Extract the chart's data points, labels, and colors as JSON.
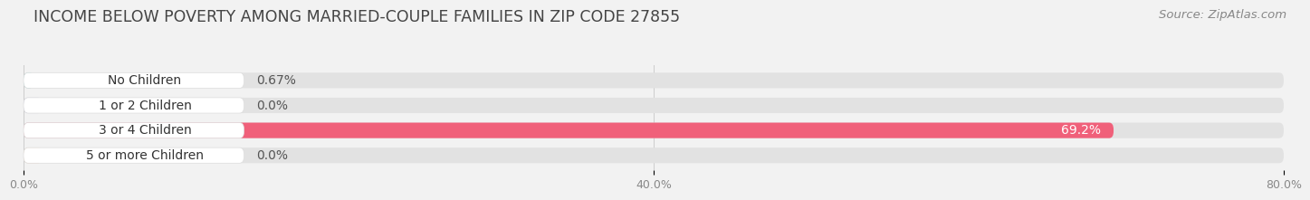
{
  "title": "INCOME BELOW POVERTY AMONG MARRIED-COUPLE FAMILIES IN ZIP CODE 27855",
  "source": "Source: ZipAtlas.com",
  "categories": [
    "No Children",
    "1 or 2 Children",
    "3 or 4 Children",
    "5 or more Children"
  ],
  "values": [
    0.67,
    0.0,
    69.2,
    0.0
  ],
  "bar_colors": [
    "#5ec8c0",
    "#a0a0d8",
    "#f0607a",
    "#f8c898"
  ],
  "value_labels": [
    "0.67%",
    "0.0%",
    "69.2%",
    "0.0%"
  ],
  "xlim": [
    0,
    80
  ],
  "xticks": [
    0.0,
    40.0,
    80.0
  ],
  "xtick_labels": [
    "0.0%",
    "40.0%",
    "80.0%"
  ],
  "bg_color": "#f2f2f2",
  "bar_bg_color": "#e2e2e2",
  "title_fontsize": 12.5,
  "source_fontsize": 9.5,
  "label_fontsize": 10,
  "value_fontsize": 10,
  "bar_height": 0.62,
  "bar_gap": 0.38
}
